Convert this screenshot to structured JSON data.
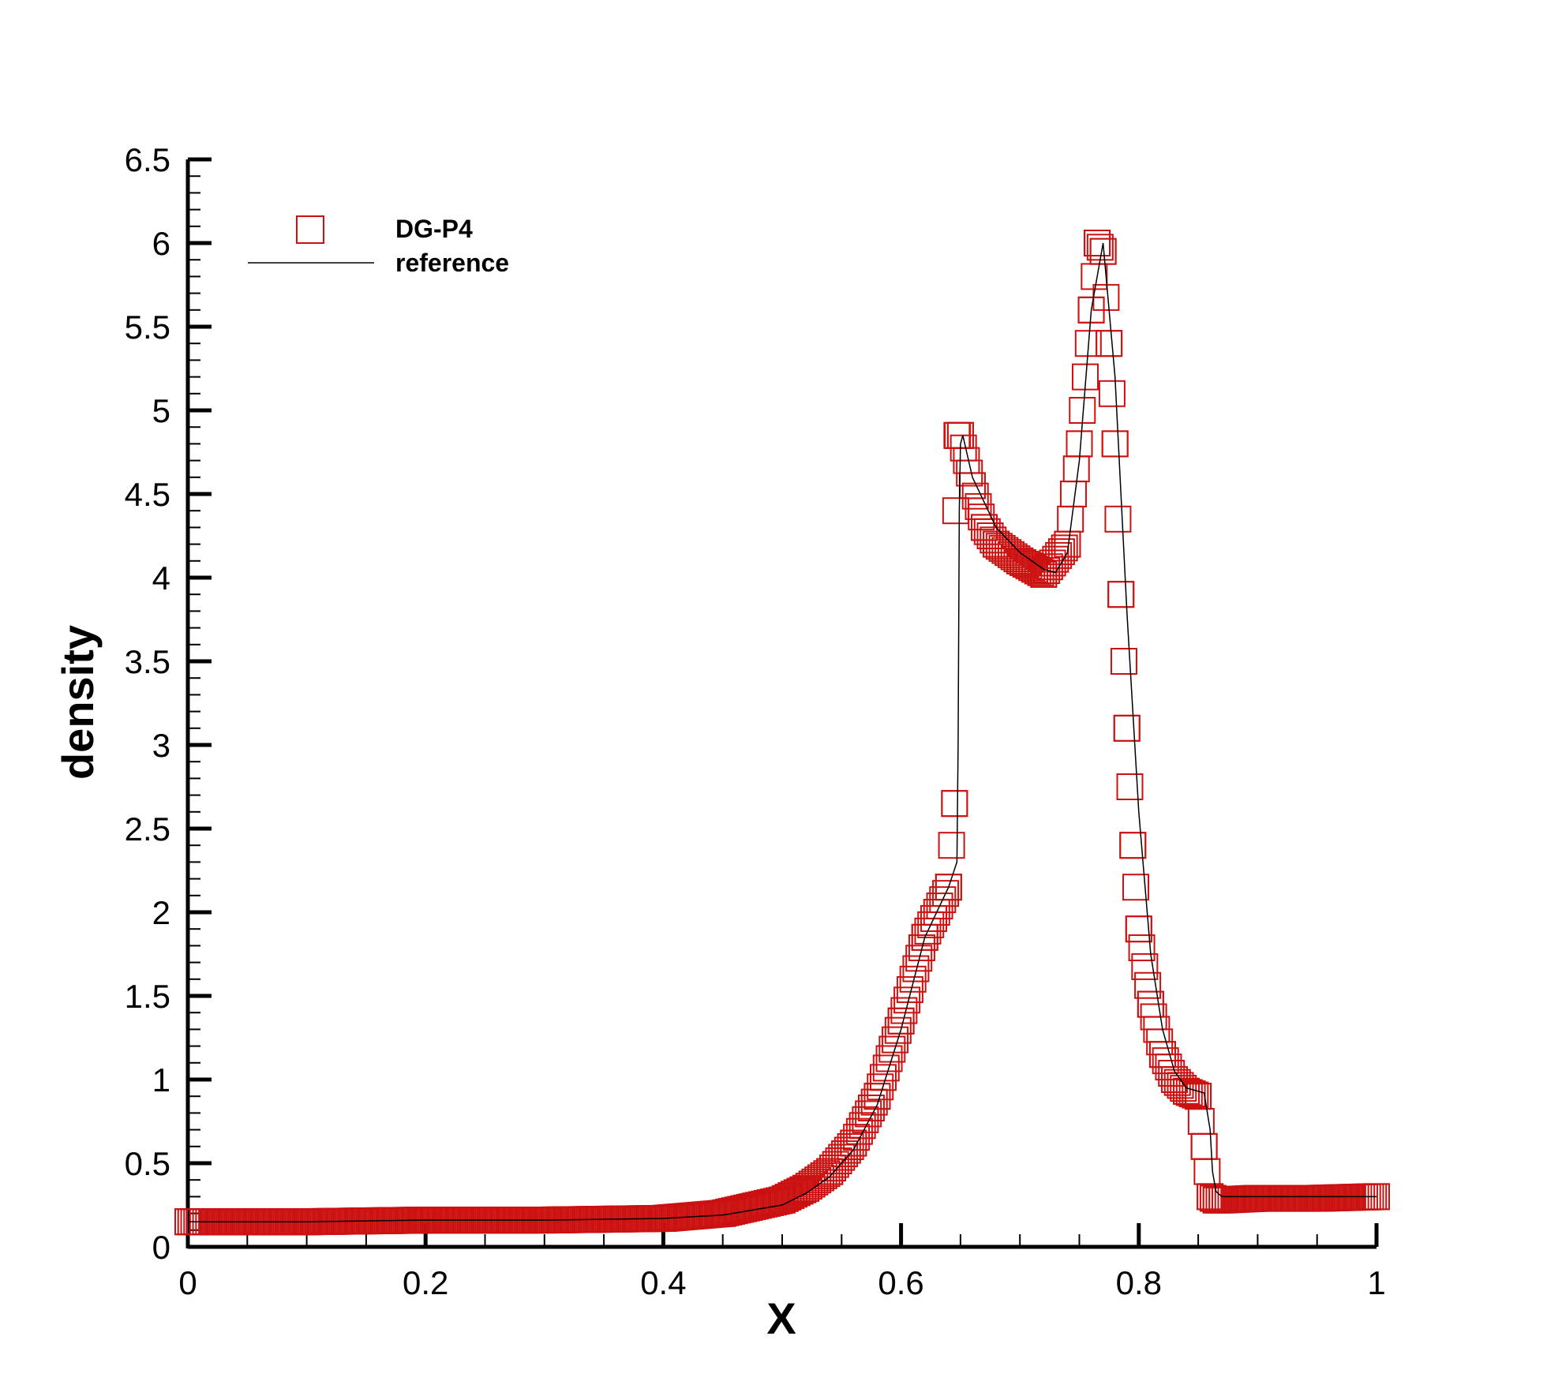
{
  "chart_data": {
    "type": "line",
    "xlabel": "X",
    "ylabel": "density",
    "xlim": [
      0,
      1
    ],
    "ylim": [
      0,
      6.5
    ],
    "x_ticks": [
      "0",
      "0.2",
      "0.4",
      "0.6",
      "0.8",
      "1"
    ],
    "y_ticks": [
      "0",
      "0.5",
      "1",
      "1.5",
      "2",
      "2.5",
      "3",
      "3.5",
      "4",
      "4.5",
      "5",
      "5.5",
      "6",
      "6.5"
    ],
    "grid": false,
    "legend_position": "top-left",
    "colors": {
      "markers": "#cc1111",
      "reference": "#000000"
    },
    "series": [
      {
        "name": "DG-P4",
        "style": "square-markers",
        "x": [
          0.0,
          0.1,
          0.2,
          0.3,
          0.4,
          0.45,
          0.5,
          0.52,
          0.54,
          0.56,
          0.58,
          0.6,
          0.62,
          0.64,
          0.645,
          0.646,
          0.647,
          0.65,
          0.66,
          0.67,
          0.68,
          0.7,
          0.72,
          0.74,
          0.75,
          0.76,
          0.765,
          0.77,
          0.775,
          0.78,
          0.785,
          0.79,
          0.795,
          0.8,
          0.81,
          0.82,
          0.83,
          0.84,
          0.85,
          0.855,
          0.86,
          0.865,
          0.87,
          0.9,
          0.95,
          1.0
        ],
        "y": [
          0.15,
          0.15,
          0.16,
          0.16,
          0.17,
          0.2,
          0.28,
          0.35,
          0.45,
          0.62,
          0.9,
          1.35,
          1.85,
          2.15,
          2.65,
          4.4,
          4.85,
          4.85,
          4.55,
          4.3,
          4.2,
          4.1,
          4.02,
          4.2,
          4.8,
          5.6,
          6.0,
          5.95,
          5.4,
          4.8,
          3.9,
          3.1,
          2.4,
          1.9,
          1.45,
          1.15,
          1.0,
          0.93,
          0.9,
          0.6,
          0.3,
          0.28,
          0.28,
          0.29,
          0.29,
          0.3
        ]
      },
      {
        "name": "reference",
        "style": "line",
        "x": [
          0.0,
          0.1,
          0.2,
          0.3,
          0.4,
          0.45,
          0.5,
          0.52,
          0.54,
          0.56,
          0.58,
          0.6,
          0.62,
          0.64,
          0.647,
          0.648,
          0.649,
          0.65,
          0.652,
          0.66,
          0.68,
          0.7,
          0.72,
          0.73,
          0.74,
          0.75,
          0.76,
          0.77,
          0.78,
          0.79,
          0.8,
          0.81,
          0.82,
          0.83,
          0.84,
          0.855,
          0.86,
          0.862,
          0.865,
          0.87,
          0.9,
          0.95,
          1.0
        ],
        "y": [
          0.15,
          0.15,
          0.16,
          0.16,
          0.17,
          0.19,
          0.25,
          0.32,
          0.42,
          0.58,
          0.85,
          1.3,
          1.85,
          2.15,
          2.3,
          3.0,
          4.4,
          4.8,
          4.85,
          4.6,
          4.3,
          4.15,
          4.05,
          4.03,
          4.15,
          4.7,
          5.6,
          6.0,
          5.2,
          3.8,
          2.6,
          1.75,
          1.3,
          1.05,
          0.95,
          0.92,
          0.7,
          0.45,
          0.33,
          0.3,
          0.3,
          0.3,
          0.3
        ]
      }
    ]
  }
}
